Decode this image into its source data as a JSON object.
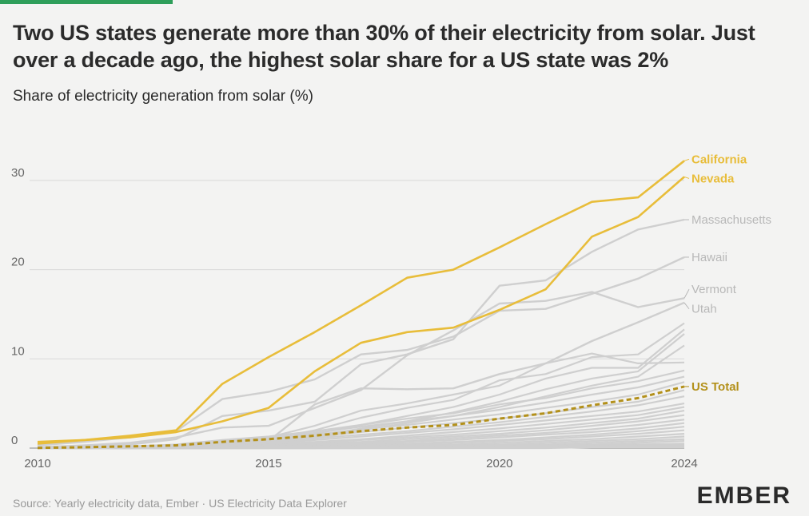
{
  "header": {
    "title": "Two US states generate more than 30% of their electricity from solar. Just over a decade ago, the highest solar share for a US state was 2%",
    "subtitle": "Share of electricity generation from solar (%)"
  },
  "footer": {
    "source": "Source: Yearly electricity data, Ember · US Electricity Data Explorer",
    "logo": "EMBER"
  },
  "colors": {
    "accent_bar": "#2e9e5a",
    "highlight": "#e8bd3a",
    "us_total": "#b3901a",
    "other_states": "#cfcfcf",
    "grid": "#d9d9d9",
    "axis_text": "#666666"
  },
  "chart_data": {
    "type": "line",
    "xlim": [
      2010,
      2024
    ],
    "ylim": [
      0,
      30
    ],
    "x_ticks": [
      "2010",
      "2015",
      "2020",
      "2024"
    ],
    "y_ticks": [
      "0",
      "10",
      "20",
      "30"
    ],
    "grid": "horizontal",
    "highlighted_series": [
      {
        "name": "California",
        "color": "#e8bd3a",
        "dashed": false,
        "x": [
          2010,
          2011,
          2012,
          2013,
          2014,
          2015,
          2016,
          2017,
          2018,
          2019,
          2020,
          2021,
          2022,
          2023,
          2024
        ],
        "values": [
          0.5,
          0.9,
          1.4,
          2.0,
          7.2,
          10.2,
          13.0,
          16.0,
          19.1,
          20.0,
          22.5,
          25.1,
          27.6,
          28.1,
          32.2
        ]
      },
      {
        "name": "Nevada",
        "color": "#e8bd3a",
        "dashed": false,
        "x": [
          2010,
          2011,
          2012,
          2013,
          2014,
          2015,
          2016,
          2017,
          2018,
          2019,
          2020,
          2021,
          2022,
          2023,
          2024
        ],
        "values": [
          0.7,
          0.9,
          1.2,
          1.8,
          3.0,
          4.5,
          8.6,
          11.8,
          13.0,
          13.5,
          15.5,
          17.8,
          23.7,
          25.9,
          30.4
        ]
      },
      {
        "name": "US Total",
        "color": "#b3901a",
        "dashed": true,
        "x": [
          2010,
          2011,
          2012,
          2013,
          2014,
          2015,
          2016,
          2017,
          2018,
          2019,
          2020,
          2021,
          2022,
          2023,
          2024
        ],
        "values": [
          0.03,
          0.1,
          0.2,
          0.3,
          0.7,
          1.0,
          1.4,
          1.9,
          2.3,
          2.6,
          3.3,
          3.9,
          4.8,
          5.6,
          6.9
        ]
      }
    ],
    "labeled_gray_series": [
      {
        "name": "Massachusetts",
        "x": [
          2010,
          2011,
          2012,
          2013,
          2014,
          2015,
          2016,
          2017,
          2018,
          2019,
          2020,
          2021,
          2022,
          2023,
          2024
        ],
        "values": [
          0.1,
          0.2,
          0.4,
          1.0,
          3.6,
          4.2,
          5.2,
          9.4,
          10.5,
          12.2,
          18.2,
          18.8,
          22.0,
          24.5,
          25.6
        ]
      },
      {
        "name": "Hawaii",
        "x": [
          2010,
          2011,
          2012,
          2013,
          2014,
          2015,
          2016,
          2017,
          2018,
          2019,
          2020,
          2021,
          2022,
          2023,
          2024
        ],
        "values": [
          0.3,
          0.7,
          1.2,
          1.9,
          5.5,
          6.3,
          7.7,
          10.5,
          11.0,
          12.5,
          15.4,
          15.6,
          17.3,
          19.0,
          21.4
        ]
      },
      {
        "name": "Vermont",
        "x": [
          2010,
          2011,
          2012,
          2013,
          2014,
          2015,
          2016,
          2017,
          2018,
          2019,
          2020,
          2021,
          2022,
          2023,
          2024
        ],
        "values": [
          0.1,
          0.3,
          0.6,
          1.2,
          2.3,
          2.5,
          4.5,
          6.5,
          10.4,
          13.2,
          16.2,
          16.5,
          17.5,
          15.8,
          16.8
        ]
      },
      {
        "name": "Utah",
        "x": [
          2010,
          2011,
          2012,
          2013,
          2014,
          2015,
          2016,
          2017,
          2018,
          2019,
          2020,
          2021,
          2022,
          2023,
          2024
        ],
        "values": [
          0.0,
          0.0,
          0.0,
          0.1,
          0.2,
          0.8,
          4.9,
          6.7,
          6.6,
          6.7,
          8.3,
          9.5,
          12.0,
          14.1,
          16.3
        ]
      }
    ],
    "unlabeled_gray_series": [
      {
        "x": [
          2010,
          2011,
          2012,
          2013,
          2014,
          2015,
          2016,
          2017,
          2018,
          2019,
          2020,
          2021,
          2022,
          2023,
          2024
        ],
        "values": [
          0.0,
          0.0,
          0.1,
          0.2,
          0.6,
          1.2,
          2.5,
          4.2,
          5.0,
          6.0,
          7.0,
          9.5,
          10.6,
          9.5,
          9.6
        ]
      },
      {
        "x": [
          2010,
          2011,
          2012,
          2013,
          2014,
          2015,
          2016,
          2017,
          2018,
          2019,
          2020,
          2021,
          2022,
          2023,
          2024
        ],
        "values": [
          0.0,
          0.0,
          0.1,
          0.2,
          0.5,
          1.0,
          2.0,
          3.4,
          4.5,
          5.4,
          7.6,
          8.3,
          10.2,
          10.5,
          14.0
        ]
      },
      {
        "x": [
          2010,
          2011,
          2012,
          2013,
          2014,
          2015,
          2016,
          2017,
          2018,
          2019,
          2020,
          2021,
          2022,
          2023,
          2024
        ],
        "values": [
          0.0,
          0.0,
          0.1,
          0.2,
          0.4,
          0.8,
          1.6,
          2.6,
          3.6,
          4.6,
          6.0,
          7.8,
          9.0,
          9.0,
          13.3
        ]
      },
      {
        "x": [
          2010,
          2011,
          2012,
          2013,
          2014,
          2015,
          2016,
          2017,
          2018,
          2019,
          2020,
          2021,
          2022,
          2023,
          2024
        ],
        "values": [
          0.0,
          0.0,
          0.1,
          0.1,
          0.3,
          0.7,
          1.3,
          2.2,
          3.0,
          4.0,
          5.2,
          6.6,
          7.8,
          8.6,
          12.8
        ]
      },
      {
        "x": [
          2010,
          2011,
          2012,
          2013,
          2014,
          2015,
          2016,
          2017,
          2018,
          2019,
          2020,
          2021,
          2022,
          2023,
          2024
        ],
        "values": [
          0.0,
          0.0,
          0.1,
          0.1,
          0.3,
          0.6,
          1.1,
          2.0,
          2.8,
          3.6,
          4.6,
          5.8,
          7.0,
          8.0,
          11.5
        ]
      },
      {
        "x": [
          2010,
          2011,
          2012,
          2013,
          2014,
          2015,
          2016,
          2017,
          2018,
          2019,
          2020,
          2021,
          2022,
          2023,
          2024
        ],
        "values": [
          0.0,
          0.1,
          0.2,
          0.4,
          0.9,
          1.3,
          1.9,
          2.6,
          3.3,
          3.9,
          4.9,
          5.6,
          6.7,
          7.5,
          8.7
        ]
      },
      {
        "x": [
          2010,
          2011,
          2012,
          2013,
          2014,
          2015,
          2016,
          2017,
          2018,
          2019,
          2020,
          2021,
          2022,
          2023,
          2024
        ],
        "values": [
          0.0,
          0.1,
          0.2,
          0.3,
          0.8,
          1.2,
          1.7,
          2.4,
          3.0,
          3.6,
          4.3,
          5.1,
          6.0,
          6.8,
          8.0
        ]
      },
      {
        "x": [
          2010,
          2011,
          2012,
          2013,
          2014,
          2015,
          2016,
          2017,
          2018,
          2019,
          2020,
          2021,
          2022,
          2023,
          2024
        ],
        "values": [
          0.0,
          0.0,
          0.1,
          0.3,
          0.6,
          1.0,
          1.5,
          2.1,
          2.6,
          3.2,
          3.8,
          4.5,
          5.2,
          6.0,
          7.4
        ]
      },
      {
        "x": [
          2010,
          2011,
          2012,
          2013,
          2014,
          2015,
          2016,
          2017,
          2018,
          2019,
          2020,
          2021,
          2022,
          2023,
          2024
        ],
        "values": [
          0.0,
          0.0,
          0.1,
          0.2,
          0.5,
          0.9,
          1.3,
          1.8,
          2.3,
          2.8,
          3.3,
          3.9,
          4.6,
          5.2,
          6.5
        ]
      },
      {
        "x": [
          2010,
          2011,
          2012,
          2013,
          2014,
          2015,
          2016,
          2017,
          2018,
          2019,
          2020,
          2021,
          2022,
          2023,
          2024
        ],
        "values": [
          0.0,
          0.0,
          0.1,
          0.2,
          0.4,
          0.7,
          1.1,
          1.5,
          1.9,
          2.4,
          2.9,
          3.5,
          4.1,
          4.8,
          5.8
        ]
      },
      {
        "x": [
          2010,
          2011,
          2012,
          2013,
          2014,
          2015,
          2016,
          2017,
          2018,
          2019,
          2020,
          2021,
          2022,
          2023,
          2024
        ],
        "values": [
          0.0,
          0.0,
          0.0,
          0.1,
          0.3,
          0.5,
          0.9,
          1.3,
          1.7,
          2.1,
          2.6,
          3.1,
          3.6,
          4.1,
          5.0
        ]
      },
      {
        "x": [
          2010,
          2011,
          2012,
          2013,
          2014,
          2015,
          2016,
          2017,
          2018,
          2019,
          2020,
          2021,
          2022,
          2023,
          2024
        ],
        "values": [
          0.0,
          0.0,
          0.0,
          0.1,
          0.2,
          0.4,
          0.7,
          1.0,
          1.4,
          1.8,
          2.2,
          2.7,
          3.2,
          3.7,
          4.6
        ]
      },
      {
        "x": [
          2010,
          2011,
          2012,
          2013,
          2014,
          2015,
          2016,
          2017,
          2018,
          2019,
          2020,
          2021,
          2022,
          2023,
          2024
        ],
        "values": [
          0.0,
          0.0,
          0.0,
          0.1,
          0.2,
          0.3,
          0.6,
          0.9,
          1.2,
          1.5,
          1.9,
          2.3,
          2.8,
          3.3,
          4.2
        ]
      },
      {
        "x": [
          2010,
          2011,
          2012,
          2013,
          2014,
          2015,
          2016,
          2017,
          2018,
          2019,
          2020,
          2021,
          2022,
          2023,
          2024
        ],
        "values": [
          0.0,
          0.0,
          0.0,
          0.0,
          0.1,
          0.3,
          0.5,
          0.7,
          1.0,
          1.3,
          1.6,
          2.0,
          2.5,
          3.0,
          3.7
        ]
      },
      {
        "x": [
          2010,
          2011,
          2012,
          2013,
          2014,
          2015,
          2016,
          2017,
          2018,
          2019,
          2020,
          2021,
          2022,
          2023,
          2024
        ],
        "values": [
          0.0,
          0.0,
          0.0,
          0.0,
          0.1,
          0.2,
          0.4,
          0.6,
          0.8,
          1.1,
          1.4,
          1.7,
          2.1,
          2.6,
          3.2
        ]
      },
      {
        "x": [
          2010,
          2011,
          2012,
          2013,
          2014,
          2015,
          2016,
          2017,
          2018,
          2019,
          2020,
          2021,
          2022,
          2023,
          2024
        ],
        "values": [
          0.0,
          0.0,
          0.0,
          0.0,
          0.1,
          0.2,
          0.3,
          0.5,
          0.7,
          0.9,
          1.2,
          1.5,
          1.8,
          2.2,
          2.8
        ]
      },
      {
        "x": [
          2010,
          2011,
          2012,
          2013,
          2014,
          2015,
          2016,
          2017,
          2018,
          2019,
          2020,
          2021,
          2022,
          2023,
          2024
        ],
        "values": [
          0.0,
          0.0,
          0.0,
          0.0,
          0.0,
          0.1,
          0.2,
          0.4,
          0.5,
          0.7,
          0.9,
          1.2,
          1.5,
          1.9,
          2.4
        ]
      },
      {
        "x": [
          2010,
          2011,
          2012,
          2013,
          2014,
          2015,
          2016,
          2017,
          2018,
          2019,
          2020,
          2021,
          2022,
          2023,
          2024
        ],
        "values": [
          0.0,
          0.0,
          0.0,
          0.0,
          0.0,
          0.1,
          0.2,
          0.3,
          0.4,
          0.6,
          0.8,
          1.0,
          1.3,
          1.6,
          2.0
        ]
      },
      {
        "x": [
          2010,
          2011,
          2012,
          2013,
          2014,
          2015,
          2016,
          2017,
          2018,
          2019,
          2020,
          2021,
          2022,
          2023,
          2024
        ],
        "values": [
          0.0,
          0.0,
          0.0,
          0.0,
          0.0,
          0.1,
          0.1,
          0.2,
          0.3,
          0.4,
          0.6,
          0.8,
          1.0,
          1.3,
          1.6
        ]
      },
      {
        "x": [
          2010,
          2011,
          2012,
          2013,
          2014,
          2015,
          2016,
          2017,
          2018,
          2019,
          2020,
          2021,
          2022,
          2023,
          2024
        ],
        "values": [
          0.0,
          0.0,
          0.0,
          0.0,
          0.0,
          0.0,
          0.1,
          0.2,
          0.2,
          0.3,
          0.4,
          0.6,
          0.8,
          1.0,
          1.3
        ]
      },
      {
        "x": [
          2010,
          2011,
          2012,
          2013,
          2014,
          2015,
          2016,
          2017,
          2018,
          2019,
          2020,
          2021,
          2022,
          2023,
          2024
        ],
        "values": [
          0.0,
          0.0,
          0.0,
          0.0,
          0.0,
          0.0,
          0.1,
          0.1,
          0.2,
          0.2,
          0.3,
          0.4,
          0.6,
          0.8,
          1.0
        ]
      },
      {
        "x": [
          2010,
          2011,
          2012,
          2013,
          2014,
          2015,
          2016,
          2017,
          2018,
          2019,
          2020,
          2021,
          2022,
          2023,
          2024
        ],
        "values": [
          0.0,
          0.0,
          0.0,
          0.0,
          0.0,
          0.0,
          0.0,
          0.1,
          0.1,
          0.2,
          0.2,
          0.3,
          0.4,
          0.6,
          0.8
        ]
      },
      {
        "x": [
          2010,
          2011,
          2012,
          2013,
          2014,
          2015,
          2016,
          2017,
          2018,
          2019,
          2020,
          2021,
          2022,
          2023,
          2024
        ],
        "values": [
          0.0,
          0.0,
          0.0,
          0.0,
          0.0,
          0.0,
          0.0,
          0.0,
          0.1,
          0.1,
          0.2,
          0.2,
          0.3,
          0.4,
          0.5
        ]
      },
      {
        "x": [
          2010,
          2011,
          2012,
          2013,
          2014,
          2015,
          2016,
          2017,
          2018,
          2019,
          2020,
          2021,
          2022,
          2023,
          2024
        ],
        "values": [
          0.0,
          0.0,
          0.0,
          0.0,
          0.0,
          0.0,
          0.0,
          0.0,
          0.0,
          0.1,
          0.1,
          0.1,
          0.2,
          0.3,
          0.3
        ]
      },
      {
        "x": [
          2010,
          2011,
          2012,
          2013,
          2014,
          2015,
          2016,
          2017,
          2018,
          2019,
          2020,
          2021,
          2022,
          2023,
          2024
        ],
        "values": [
          0.0,
          0.0,
          0.0,
          0.0,
          0.0,
          0.0,
          0.0,
          0.0,
          0.0,
          0.0,
          0.1,
          0.1,
          0.1,
          0.2,
          0.2
        ]
      },
      {
        "x": [
          2010,
          2011,
          2012,
          2013,
          2014,
          2015,
          2016,
          2017,
          2018,
          2019,
          2020,
          2021,
          2022,
          2023,
          2024
        ],
        "values": [
          0.0,
          0.0,
          0.0,
          0.0,
          0.0,
          0.0,
          0.0,
          0.0,
          0.0,
          0.0,
          0.0,
          0.0,
          0.1,
          0.1,
          0.1
        ]
      }
    ]
  }
}
